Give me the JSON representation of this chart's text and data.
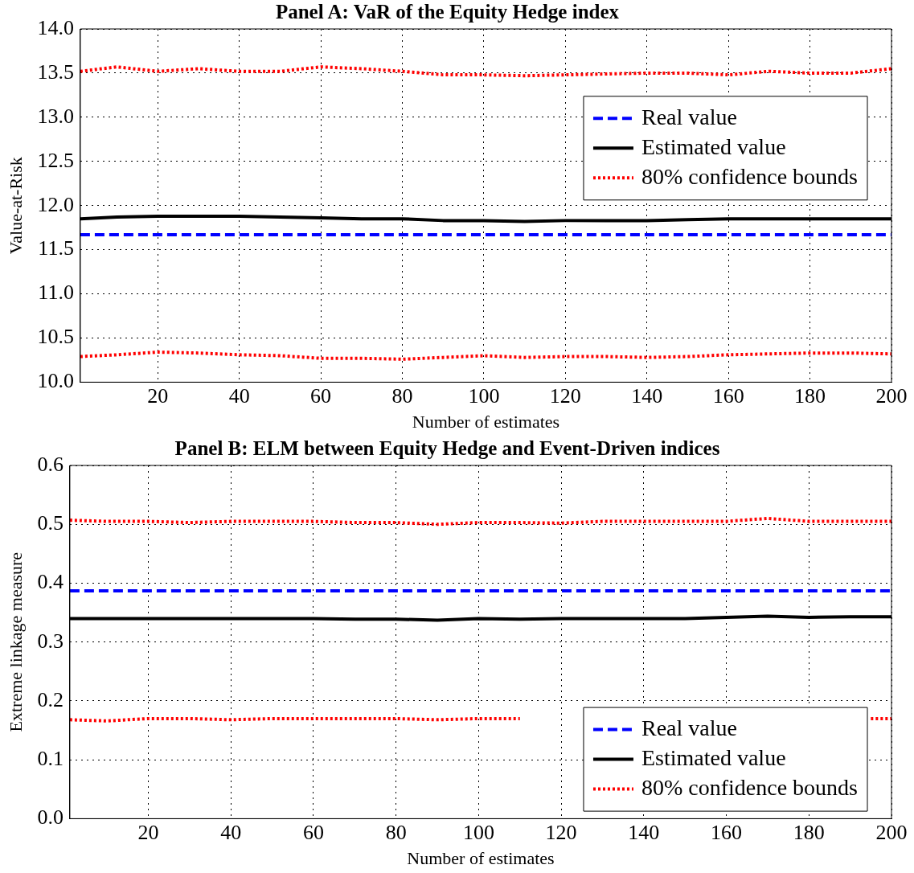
{
  "chart_data": [
    {
      "type": "line",
      "title": "Panel A: VaR of the Equity Hedge index",
      "xlabel": "Number of estimates",
      "ylabel": "Value-at-Risk",
      "xlim": [
        1,
        200
      ],
      "xticks": [
        20,
        40,
        60,
        80,
        100,
        120,
        140,
        160,
        180,
        200
      ],
      "ylim": [
        10,
        14
      ],
      "yticks": [
        {
          "value": 10,
          "label": "10.0"
        },
        10.5,
        {
          "value": 11,
          "label": "11.0"
        },
        11.5,
        {
          "value": 12,
          "label": "12.0"
        },
        12.5,
        {
          "value": 13,
          "label": "13.0"
        },
        13.5,
        {
          "value": 14,
          "label": "14.0"
        }
      ],
      "grid": true,
      "legend": "right",
      "marker": "none",
      "series": [
        {
          "name": "Real value",
          "color": "#0000ff",
          "line_style": "dashed",
          "x": [
            1,
            200
          ],
          "values": [
            11.67,
            11.67
          ]
        },
        {
          "name": "Estimated value",
          "color": "#000000",
          "line_style": "solid",
          "x": [
            1,
            10,
            20,
            30,
            40,
            50,
            60,
            70,
            80,
            90,
            100,
            110,
            120,
            130,
            140,
            150,
            160,
            170,
            180,
            190,
            200
          ],
          "values": [
            11.85,
            11.87,
            11.88,
            11.88,
            11.88,
            11.87,
            11.86,
            11.85,
            11.85,
            11.83,
            11.83,
            11.82,
            11.83,
            11.83,
            11.83,
            11.84,
            11.85,
            11.85,
            11.85,
            11.85,
            11.85
          ]
        },
        {
          "name": "80% confidence bounds",
          "color": "#ff0000",
          "line_style": "dotted",
          "x": [
            1,
            10,
            20,
            30,
            40,
            50,
            60,
            70,
            80,
            90,
            100,
            110,
            120,
            130,
            140,
            150,
            160,
            170,
            180,
            190,
            200
          ],
          "values": [
            13.52,
            13.57,
            13.52,
            13.55,
            13.52,
            13.52,
            13.57,
            13.55,
            13.52,
            13.48,
            13.48,
            13.47,
            13.48,
            13.49,
            13.5,
            13.5,
            13.48,
            13.52,
            13.5,
            13.5,
            13.55
          ]
        },
        {
          "color": "#ff0000",
          "line_style": "dotted",
          "x": [
            1,
            10,
            20,
            30,
            40,
            50,
            60,
            70,
            80,
            90,
            100,
            110,
            120,
            130,
            140,
            150,
            160,
            170,
            180,
            190,
            200
          ],
          "values": [
            10.29,
            10.31,
            10.34,
            10.33,
            10.31,
            10.3,
            10.27,
            10.27,
            10.26,
            10.28,
            10.3,
            10.28,
            10.29,
            10.29,
            10.28,
            10.29,
            10.31,
            10.32,
            10.33,
            10.33,
            10.32
          ]
        }
      ]
    },
    {
      "type": "line",
      "title": "Panel B: ELM between Equity Hedge and Event-Driven indices",
      "xlabel": "Number of estimates",
      "ylabel": "Extreme linkage measure",
      "xlim": [
        1,
        200
      ],
      "xticks": [
        20,
        40,
        60,
        80,
        100,
        120,
        140,
        160,
        180,
        200
      ],
      "ylim": [
        0,
        0.6
      ],
      "yticks": [
        {
          "value": 0,
          "label": "0.0"
        },
        0.1,
        0.2,
        0.3,
        0.4,
        0.5,
        0.6
      ],
      "grid": true,
      "legend": "bottom right",
      "marker": "none",
      "series": [
        {
          "name": "Real value",
          "color": "#0000ff",
          "line_style": "dashed",
          "x": [
            1,
            200
          ],
          "values": [
            0.387,
            0.387
          ]
        },
        {
          "name": "Estimated value",
          "color": "#000000",
          "line_style": "solid",
          "x": [
            1,
            10,
            20,
            30,
            40,
            50,
            60,
            70,
            80,
            90,
            100,
            110,
            120,
            130,
            140,
            150,
            160,
            170,
            180,
            190,
            200
          ],
          "values": [
            0.34,
            0.34,
            0.34,
            0.34,
            0.34,
            0.34,
            0.34,
            0.339,
            0.339,
            0.337,
            0.34,
            0.339,
            0.34,
            0.34,
            0.34,
            0.34,
            0.342,
            0.344,
            0.342,
            0.343,
            0.343
          ]
        },
        {
          "name": "80% confidence bounds",
          "color": "#ff0000",
          "line_style": "dotted",
          "x": [
            1,
            10,
            20,
            30,
            40,
            50,
            60,
            70,
            80,
            90,
            100,
            110,
            120,
            130,
            140,
            150,
            160,
            170,
            180,
            190,
            200
          ],
          "values": [
            0.507,
            0.505,
            0.505,
            0.503,
            0.505,
            0.505,
            0.505,
            0.503,
            0.503,
            0.5,
            0.503,
            0.503,
            0.502,
            0.505,
            0.505,
            0.505,
            0.505,
            0.51,
            0.505,
            0.505,
            0.505
          ]
        },
        {
          "color": "#ff0000",
          "line_style": "dotted",
          "x": [
            1,
            10,
            20,
            30,
            40,
            50,
            60,
            70,
            80,
            90,
            100,
            110,
            120,
            130,
            140,
            150,
            160,
            170,
            180,
            190,
            195,
            200
          ],
          "values": [
            0.168,
            0.166,
            0.17,
            0.17,
            0.168,
            0.17,
            0.17,
            0.17,
            0.17,
            0.168,
            0.17,
            0.17,
            null,
            null,
            null,
            null,
            null,
            null,
            null,
            null,
            0.17,
            0.17
          ]
        }
      ]
    }
  ]
}
